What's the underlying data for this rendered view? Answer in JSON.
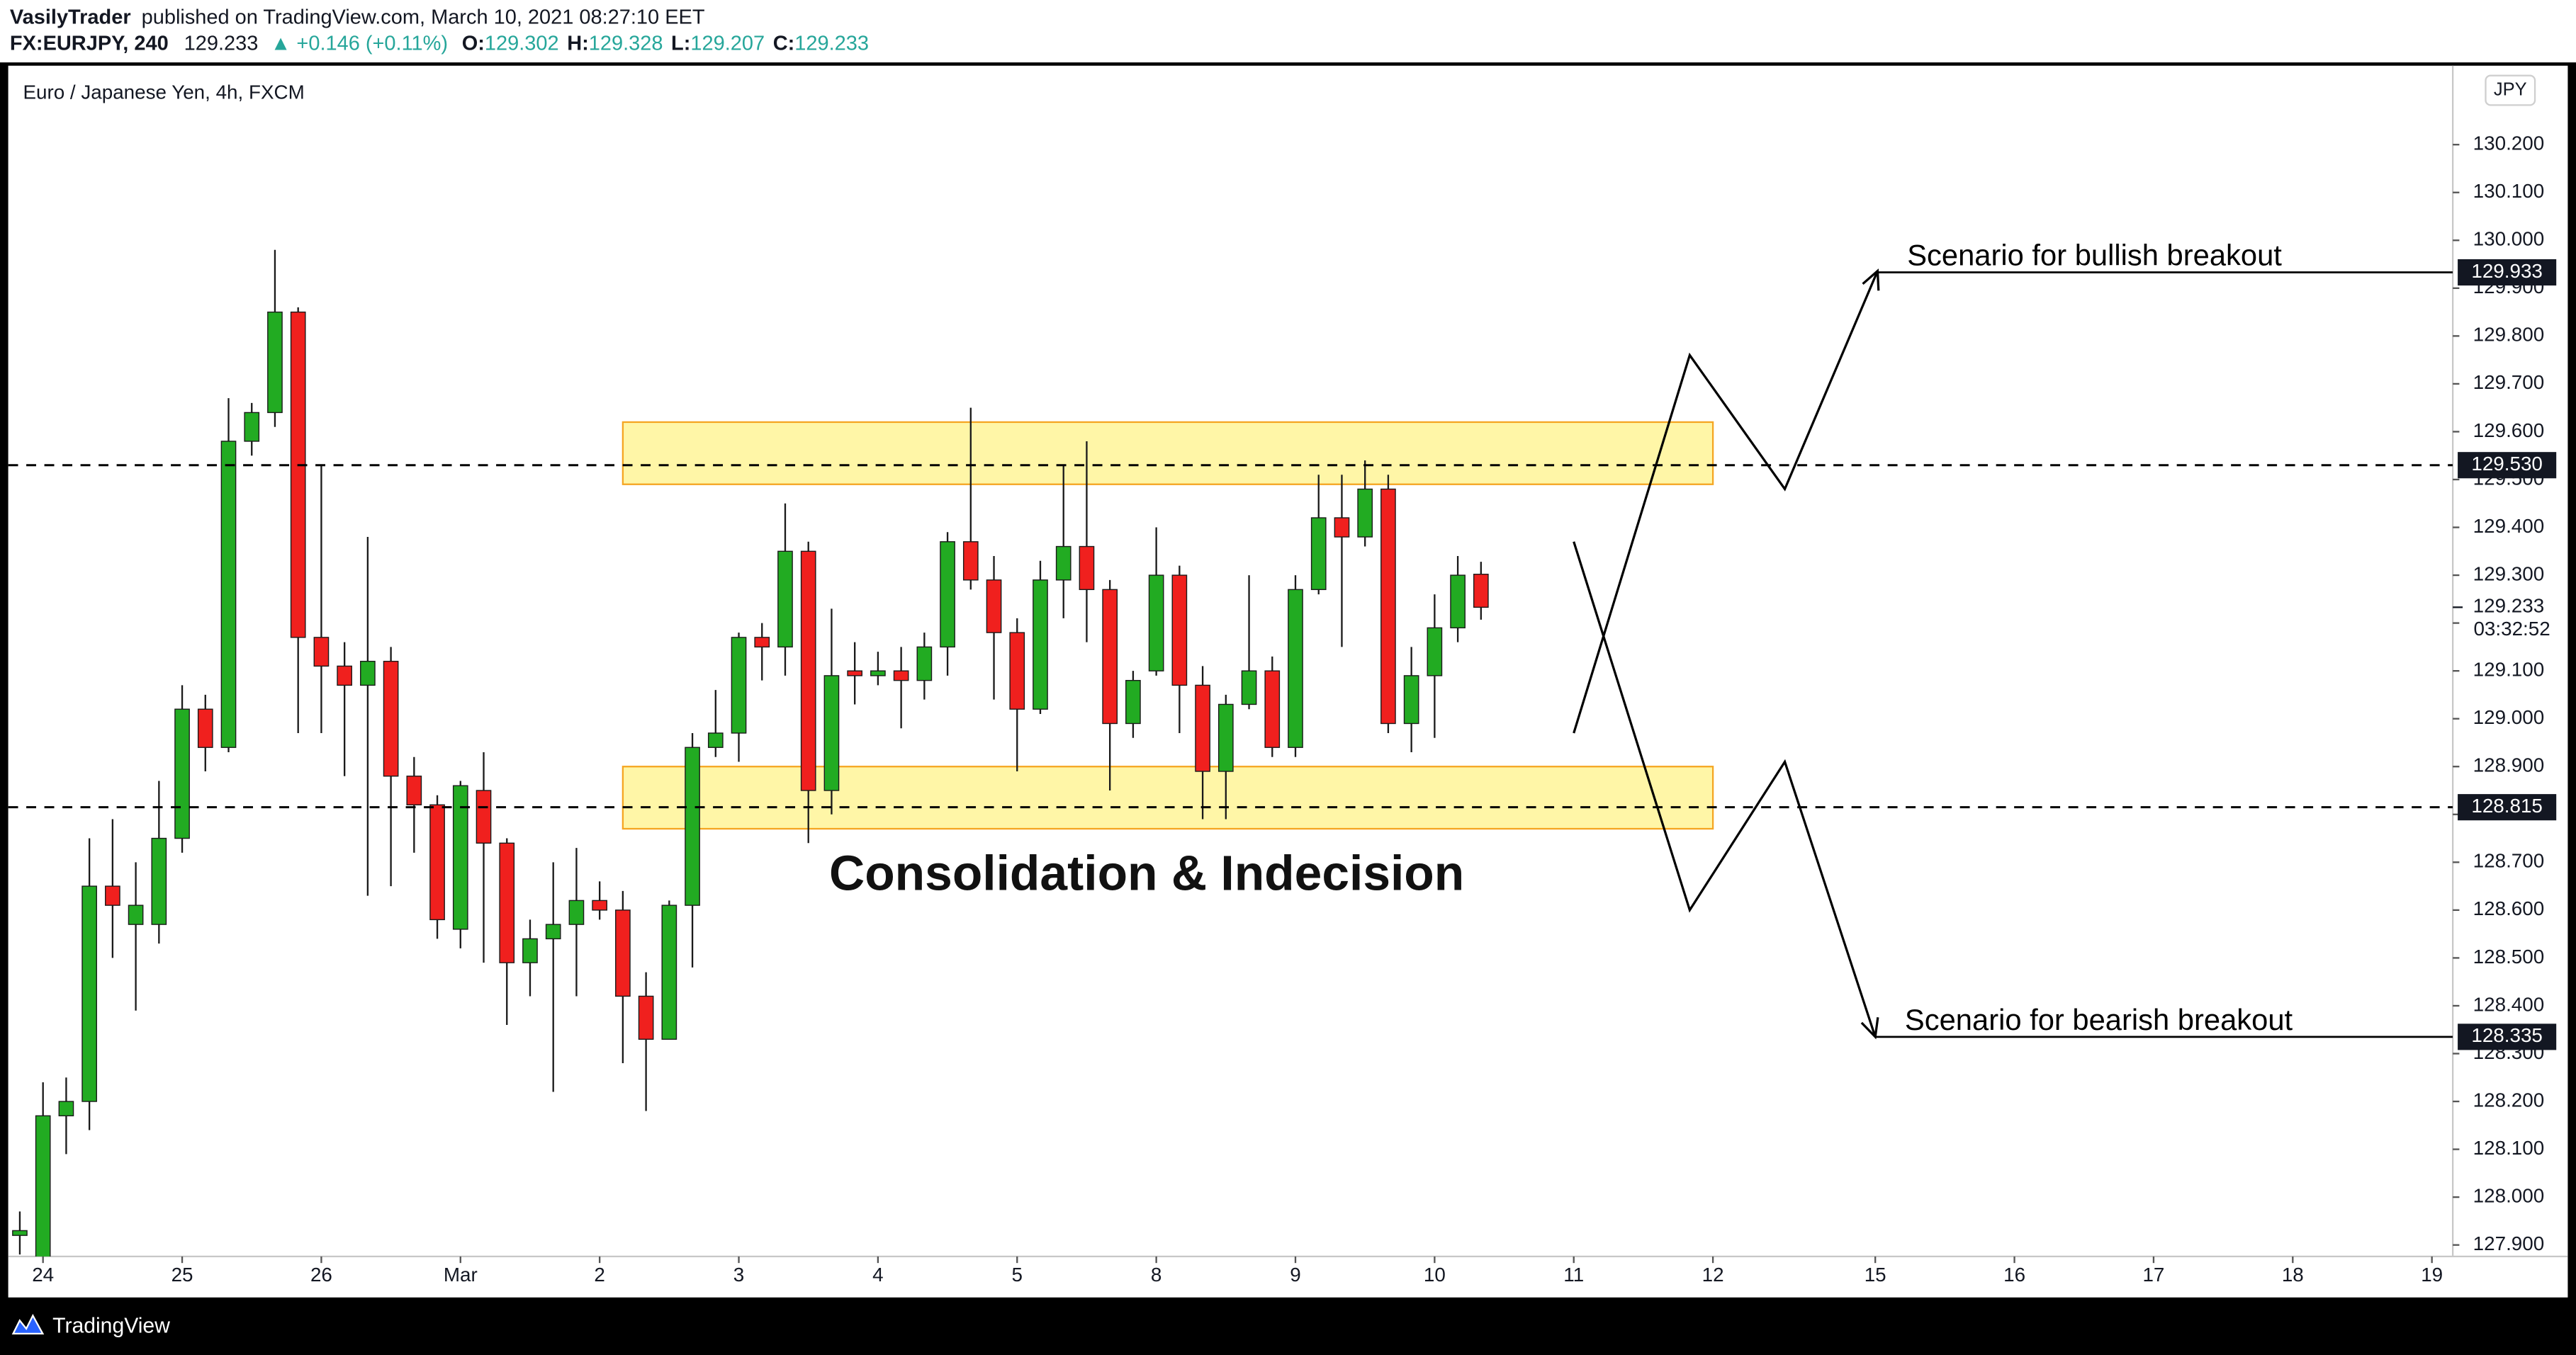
{
  "header": {
    "author": "VasilyTrader",
    "published": "published on TradingView.com, March 10, 2021 08:27:10 EET",
    "symbol": "FX:EURJPY, 240",
    "price": "129.233",
    "change": "▲ +0.146 (+0.11%)",
    "ohlc": [
      {
        "key": "O:",
        "value": "129.302"
      },
      {
        "key": "H:",
        "value": "129.328"
      },
      {
        "key": "L:",
        "value": "129.207"
      },
      {
        "key": "C:",
        "value": "129.233"
      }
    ]
  },
  "chart_data": {
    "type": "candlestick",
    "title": "Euro / Japanese Yen, 4h, FXCM",
    "currency": "JPY",
    "up_color": "#22ab22",
    "down_color": "#f0201e",
    "open": [
      127.92,
      127.87,
      128.17,
      128.2,
      128.65,
      128.57,
      128.57,
      128.75,
      129.02,
      128.94,
      129.58,
      129.64,
      129.85,
      129.17,
      129.11,
      129.07,
      129.12,
      128.88,
      128.82,
      128.56,
      128.85,
      128.74,
      128.49,
      128.54,
      128.57,
      128.62,
      128.6,
      128.42,
      128.33,
      128.61,
      128.94,
      128.97,
      129.17,
      129.15,
      129.35,
      128.85,
      129.1,
      129.09,
      129.1,
      129.08,
      129.15,
      129.37,
      129.29,
      129.18,
      129.02,
      129.29,
      129.36,
      129.27,
      128.99,
      129.1,
      129.3,
      129.07,
      128.89,
      129.03,
      129.1,
      128.94,
      129.27,
      129.42,
      129.38,
      129.48,
      128.99,
      129.09,
      129.19,
      129.302
    ],
    "high": [
      127.97,
      128.24,
      128.25,
      128.75,
      128.79,
      128.7,
      128.87,
      129.07,
      129.05,
      129.67,
      129.66,
      129.98,
      129.86,
      129.53,
      129.16,
      129.38,
      129.15,
      128.92,
      128.84,
      128.87,
      128.93,
      128.75,
      128.58,
      128.7,
      128.73,
      128.66,
      128.64,
      128.47,
      128.62,
      128.97,
      129.06,
      129.18,
      129.2,
      129.45,
      129.37,
      129.23,
      129.16,
      129.14,
      129.15,
      129.18,
      129.39,
      129.65,
      129.34,
      129.21,
      129.33,
      129.53,
      129.58,
      129.29,
      129.1,
      129.4,
      129.32,
      129.11,
      129.05,
      129.3,
      129.13,
      129.3,
      129.51,
      129.51,
      129.54,
      129.51,
      129.15,
      129.26,
      129.34,
      129.328
    ],
    "low": [
      127.88,
      127.85,
      128.09,
      128.14,
      128.5,
      128.39,
      128.53,
      128.72,
      128.89,
      128.93,
      129.55,
      129.61,
      128.97,
      128.97,
      128.88,
      128.63,
      128.65,
      128.72,
      128.54,
      128.52,
      128.49,
      128.36,
      128.42,
      128.22,
      128.42,
      128.58,
      128.28,
      128.18,
      128.33,
      128.48,
      128.92,
      128.91,
      129.08,
      129.09,
      128.74,
      128.8,
      129.03,
      129.07,
      128.98,
      129.04,
      129.09,
      129.27,
      129.04,
      128.89,
      129.01,
      129.21,
      129.16,
      128.85,
      128.96,
      129.09,
      128.97,
      128.79,
      128.79,
      129.02,
      128.92,
      128.92,
      129.26,
      129.15,
      129.36,
      128.97,
      128.93,
      128.96,
      129.16,
      129.207
    ],
    "close": [
      127.93,
      128.17,
      128.2,
      128.65,
      128.61,
      128.61,
      128.75,
      129.02,
      128.94,
      129.58,
      129.64,
      129.85,
      129.17,
      129.11,
      129.07,
      129.12,
      128.88,
      128.82,
      128.58,
      128.86,
      128.74,
      128.49,
      128.54,
      128.57,
      128.62,
      128.6,
      128.42,
      128.33,
      128.61,
      128.94,
      128.97,
      129.17,
      129.15,
      129.35,
      128.85,
      129.09,
      129.09,
      129.1,
      129.08,
      129.15,
      129.37,
      129.29,
      129.18,
      129.02,
      129.29,
      129.36,
      129.27,
      128.99,
      129.08,
      129.3,
      129.07,
      128.89,
      129.03,
      129.1,
      128.94,
      129.27,
      129.42,
      129.38,
      129.48,
      128.99,
      129.09,
      129.19,
      129.3,
      129.233
    ],
    "xlim": [
      -0.5,
      104.9
    ],
    "ylim": [
      127.876,
      130.365
    ],
    "xticks": [
      {
        "value": 1,
        "label": "24"
      },
      {
        "value": 7,
        "label": "25"
      },
      {
        "value": 13,
        "label": "26"
      },
      {
        "value": 19,
        "label": "Mar"
      },
      {
        "value": 25,
        "label": "2"
      },
      {
        "value": 31,
        "label": "3"
      },
      {
        "value": 37,
        "label": "4"
      },
      {
        "value": 43,
        "label": "5"
      },
      {
        "value": 49,
        "label": "8"
      },
      {
        "value": 55,
        "label": "9"
      },
      {
        "value": 61,
        "label": "10"
      },
      {
        "value": 67,
        "label": "11"
      },
      {
        "value": 73,
        "label": "12"
      },
      {
        "value": 80,
        "label": "15"
      },
      {
        "value": 86,
        "label": "16"
      },
      {
        "value": 92,
        "label": "17"
      },
      {
        "value": 98,
        "label": "18"
      },
      {
        "value": 104,
        "label": "19"
      }
    ],
    "yticks": [
      {
        "value": 127.9,
        "label": "127.900"
      },
      {
        "value": 128.0,
        "label": "128.000"
      },
      {
        "value": 128.1,
        "label": "128.100"
      },
      {
        "value": 128.2,
        "label": "128.200"
      },
      {
        "value": 128.3,
        "label": "128.300"
      },
      {
        "value": 128.4,
        "label": "128.400"
      },
      {
        "value": 128.5,
        "label": "128.500"
      },
      {
        "value": 128.6,
        "label": "128.600"
      },
      {
        "value": 128.7,
        "label": "128.700"
      },
      {
        "value": 128.8,
        "label": "128.800"
      },
      {
        "value": 128.9,
        "label": "128.900"
      },
      {
        "value": 129.0,
        "label": "129.000"
      },
      {
        "value": 129.1,
        "label": "129.100"
      },
      {
        "value": 129.2,
        "label": "129.200"
      },
      {
        "value": 129.3,
        "label": "129.300"
      },
      {
        "value": 129.4,
        "label": "129.400"
      },
      {
        "value": 129.5,
        "label": "129.500"
      },
      {
        "value": 129.6,
        "label": "129.600"
      },
      {
        "value": 129.7,
        "label": "129.700"
      },
      {
        "value": 129.8,
        "label": "129.800"
      },
      {
        "value": 129.9,
        "label": "129.900"
      },
      {
        "value": 130.0,
        "label": "130.000"
      },
      {
        "value": 130.1,
        "label": "130.100"
      },
      {
        "value": 130.2,
        "label": "130.200"
      }
    ],
    "price_line": {
      "value": 129.233,
      "label": "129.233",
      "countdown": "03:32:52"
    },
    "zones": [
      {
        "x": [
          26,
          73
        ],
        "y": [
          129.49,
          129.62
        ]
      },
      {
        "x": [
          26,
          73
        ],
        "y": [
          128.77,
          128.9
        ]
      }
    ],
    "levels": {
      "values": [
        129.53,
        128.815
      ],
      "value_labels": [
        "129.530",
        "128.815"
      ]
    },
    "projections": [
      {
        "x": [
          67,
          72,
          76.1,
          80.1
        ],
        "y": [
          128.97,
          129.76,
          129.48,
          129.936
        ]
      },
      {
        "x": [
          67,
          72,
          76.1,
          80
        ],
        "y": [
          129.37,
          128.6,
          128.91,
          128.335
        ]
      }
    ],
    "scenarios": {
      "values": [
        129.933,
        128.335
      ],
      "value_labels": [
        "129.933",
        "128.335"
      ],
      "labels": [
        "Scenario for bullish breakout",
        "Scenario for bearish breakout"
      ]
    },
    "annotation": "Consolidation & Indecision"
  },
  "footer": {
    "brand": "TradingView"
  }
}
